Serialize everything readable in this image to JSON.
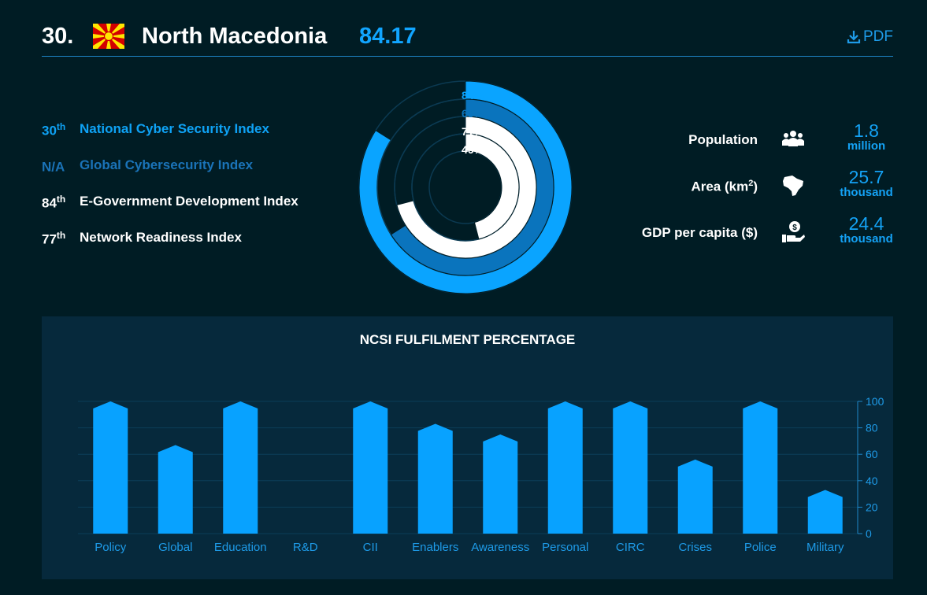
{
  "header": {
    "rank": "30.",
    "country": "North Macedonia",
    "score": "84.17",
    "pdf_label": "PDF"
  },
  "indices": [
    {
      "rank": "30",
      "suffix": "th",
      "label": "National Cyber Security Index",
      "color": "#0ea2f5"
    },
    {
      "rank": "N/A",
      "suffix": "",
      "label": "Global Cybersecurity Index",
      "color": "#1a73b8"
    },
    {
      "rank": "84",
      "suffix": "th",
      "label": "E-Government Development Index",
      "color": "#ffffff"
    },
    {
      "rank": "77",
      "suffix": "th",
      "label": "Network Readiness Index",
      "color": "#ffffff"
    }
  ],
  "donut": [
    {
      "label": "84%",
      "value": 84,
      "color": "#0aa4ff"
    },
    {
      "label": "66%",
      "value": 66,
      "color": "#0a74bd"
    },
    {
      "label": "71%",
      "value": 71,
      "color": "#ffffff"
    },
    {
      "label": "46%",
      "value": 46,
      "color": "#ffffff"
    }
  ],
  "stats": [
    {
      "label": "Population",
      "sup": "",
      "suffix": "",
      "icon": "people-icon",
      "value": "1.8",
      "unit": "million"
    },
    {
      "label": "Area (km",
      "sup": "2",
      "suffix": ")",
      "icon": "map-icon",
      "value": "25.7",
      "unit": "thousand"
    },
    {
      "label": "GDP per capita ($)",
      "sup": "",
      "suffix": "",
      "icon": "money-hand-icon",
      "value": "24.4",
      "unit": "thousand"
    }
  ],
  "chart_data": {
    "type": "bar",
    "title": "NCSI FULFILMENT PERCENTAGE",
    "categories": [
      "Policy",
      "Global",
      "Education",
      "R&D",
      "CII",
      "Enablers",
      "Awareness",
      "Personal",
      "CIRC",
      "Crises",
      "Police",
      "Military"
    ],
    "values": [
      100,
      67,
      100,
      0,
      100,
      83,
      75,
      100,
      100,
      56,
      100,
      33
    ],
    "ylim": [
      0,
      100
    ],
    "yticks": [
      0,
      20,
      40,
      60,
      80,
      100
    ],
    "ylabel": "",
    "xlabel": "",
    "bar_color": "#08a2ff",
    "grid": true
  }
}
